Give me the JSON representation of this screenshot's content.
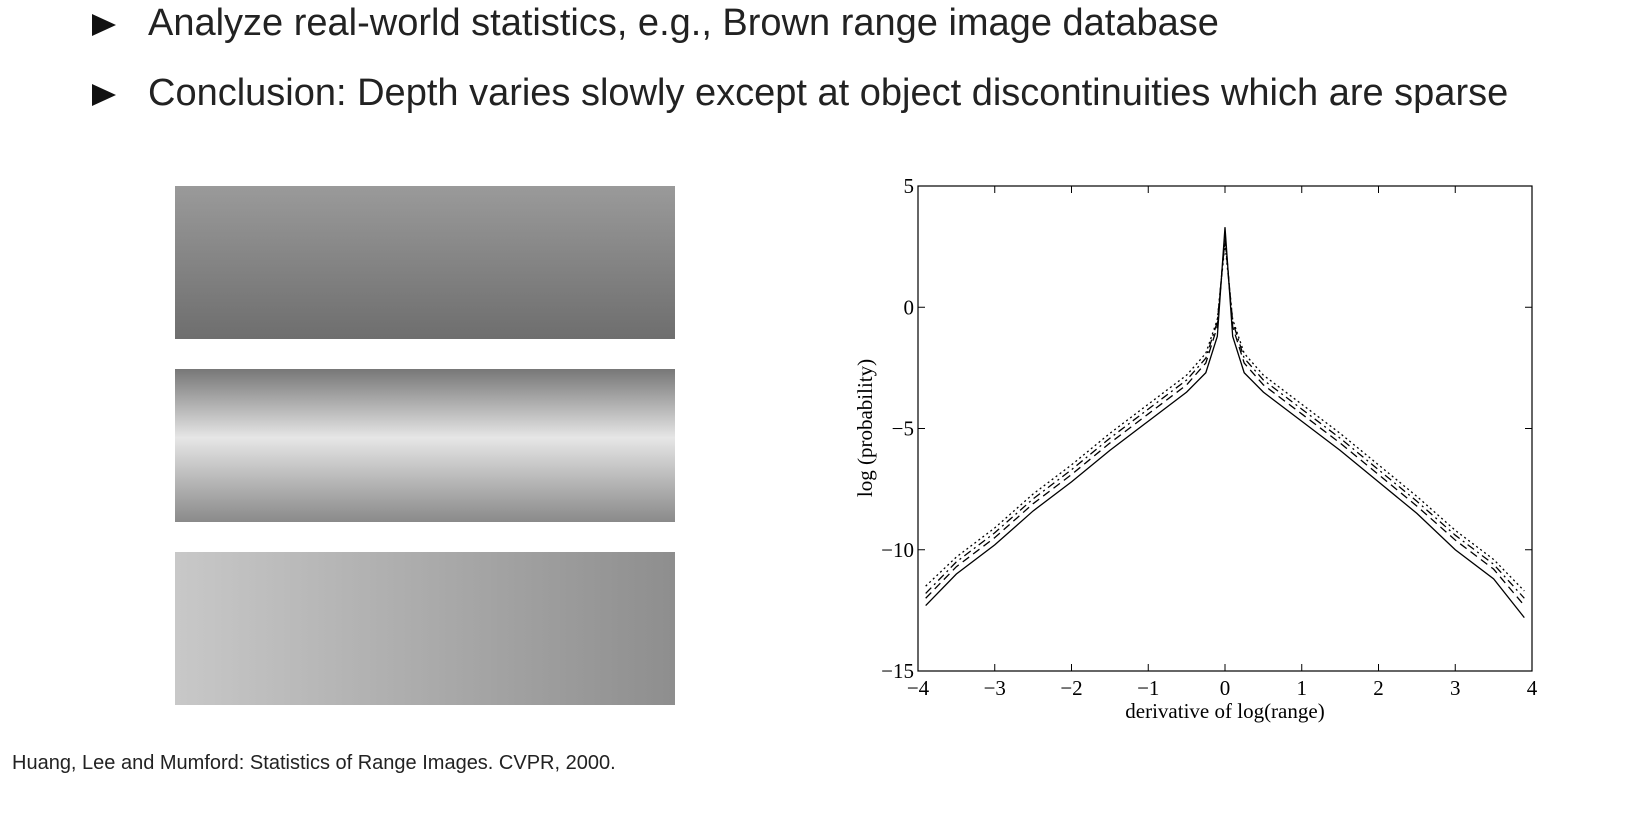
{
  "bullets": [
    "Analyze real-world statistics, e.g., Brown range image database",
    "Conclusion: Depth varies slowly except at object discontinuities which are sparse"
  ],
  "citation": "Huang, Lee and Mumford: Statistics of Range Images. CVPR, 2000.",
  "chart_data": {
    "type": "line",
    "xlabel": "derivative of log(range)",
    "ylabel": "log (probability)",
    "x": [
      -3.9,
      -3.5,
      -3,
      -2.5,
      -2,
      -1.5,
      -1,
      -0.5,
      -0.25,
      -0.1,
      0,
      0.1,
      0.25,
      0.5,
      1,
      1.5,
      2,
      2.5,
      3,
      3.5,
      3.9
    ],
    "series": [
      {
        "color": "#000000",
        "dash": "solid",
        "values": [
          -12.3,
          -11.0,
          -9.8,
          -8.4,
          -7.2,
          -5.9,
          -4.7,
          -3.5,
          -2.7,
          -1.2,
          3.3,
          -1.2,
          -2.7,
          -3.5,
          -4.7,
          -5.9,
          -7.2,
          -8.5,
          -10.0,
          -11.2,
          -12.8
        ]
      },
      {
        "color": "#000000",
        "dash": "dashed",
        "values": [
          -12.0,
          -10.7,
          -9.5,
          -8.1,
          -6.9,
          -5.6,
          -4.4,
          -3.2,
          -2.3,
          -0.8,
          3.0,
          -0.8,
          -2.3,
          -3.2,
          -4.4,
          -5.6,
          -6.9,
          -8.2,
          -9.6,
          -10.8,
          -12.3
        ]
      },
      {
        "color": "#000000",
        "dash": "dashdot",
        "values": [
          -11.8,
          -10.5,
          -9.3,
          -7.9,
          -6.7,
          -5.4,
          -4.2,
          -3.0,
          -2.1,
          -0.6,
          2.8,
          -0.6,
          -2.1,
          -3.0,
          -4.2,
          -5.4,
          -6.7,
          -8.0,
          -9.4,
          -10.6,
          -12.0
        ]
      },
      {
        "color": "#000000",
        "dash": "dotted",
        "values": [
          -11.5,
          -10.3,
          -9.1,
          -7.7,
          -6.5,
          -5.2,
          -4.0,
          -2.8,
          -1.9,
          -0.5,
          2.6,
          -0.5,
          -1.9,
          -2.8,
          -4.0,
          -5.2,
          -6.5,
          -7.8,
          -9.2,
          -10.4,
          -11.7
        ]
      }
    ],
    "xlim": [
      -4,
      4
    ],
    "xticks": [
      {
        "value": -4,
        "label": "−4"
      },
      {
        "value": -3,
        "label": "−3"
      },
      {
        "value": -2,
        "label": "−2"
      },
      {
        "value": -1,
        "label": "−1"
      },
      0,
      1,
      2,
      3,
      4
    ],
    "ylim": [
      -15,
      5
    ],
    "yticks": [
      {
        "value": -15,
        "label": "−15"
      },
      {
        "value": -10,
        "label": "−10"
      },
      {
        "value": -5,
        "label": "−5"
      },
      0,
      5
    ]
  }
}
